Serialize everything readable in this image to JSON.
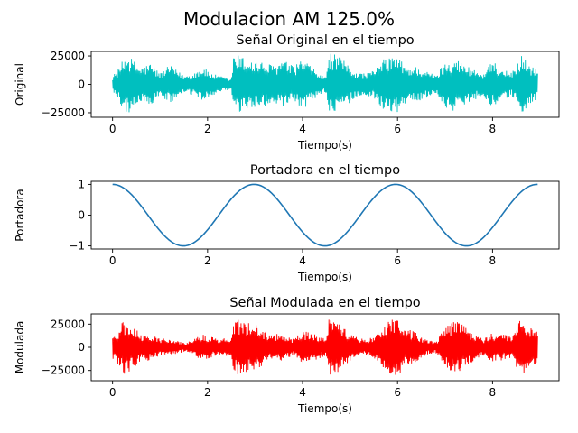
{
  "figure": {
    "suptitle": "Modulacion AM 125.0%"
  },
  "chart_data": [
    {
      "type": "line",
      "title": "Señal Original en el tiempo",
      "xlabel": "Tiempo(s)",
      "ylabel": "Original",
      "color": "#00bfbf",
      "xlim": [
        -0.45,
        9.4
      ],
      "ylim": [
        -29000,
        29000
      ],
      "xticks": [
        0,
        2,
        4,
        6,
        8
      ],
      "xtick_labels": [
        "0",
        "2",
        "4",
        "6",
        "8"
      ],
      "yticks": [
        -25000,
        0,
        25000
      ],
      "ytick_labels": [
        "−25000",
        "0",
        "25000"
      ],
      "signal": "audio waveform, 0 to 8.95 s",
      "envelope": {
        "t": [
          0.0,
          0.1,
          0.2,
          0.3,
          0.45,
          0.6,
          0.8,
          1.0,
          1.2,
          1.5,
          1.7,
          1.9,
          2.0,
          2.2,
          2.4,
          2.5,
          2.55,
          2.65,
          2.8,
          3.0,
          3.2,
          3.4,
          3.6,
          3.8,
          4.0,
          4.2,
          4.4,
          4.5,
          4.55,
          4.7,
          4.9,
          5.1,
          5.3,
          5.5,
          5.7,
          5.9,
          6.0,
          6.2,
          6.4,
          6.6,
          6.8,
          7.0,
          7.2,
          7.4,
          7.6,
          7.8,
          8.0,
          8.2,
          8.4,
          8.6,
          8.8,
          8.95
        ],
        "amp": [
          8000,
          12000,
          20000,
          27000,
          21000,
          15000,
          19000,
          10000,
          17000,
          8000,
          10000,
          16000,
          12000,
          8000,
          6000,
          5000,
          27000,
          26000,
          23000,
          21000,
          19000,
          17000,
          22000,
          16000,
          23000,
          15000,
          8000,
          7000,
          28000,
          26000,
          20000,
          12000,
          10000,
          12000,
          22000,
          26000,
          25000,
          15000,
          16000,
          12000,
          8000,
          20000,
          24000,
          18000,
          14000,
          10000,
          20000,
          15000,
          10000,
          26000,
          17000,
          13000
        ]
      }
    },
    {
      "type": "line",
      "title": "Portadora en el tiempo",
      "xlabel": "Tiempo(s)",
      "ylabel": "Portadora",
      "color": "#1f77b4",
      "xlim": [
        -0.45,
        9.4
      ],
      "ylim": [
        -1.1,
        1.1
      ],
      "xticks": [
        0,
        2,
        4,
        6,
        8
      ],
      "xtick_labels": [
        "0",
        "2",
        "4",
        "6",
        "8"
      ],
      "yticks": [
        -1,
        0,
        1
      ],
      "ytick_labels": [
        "−1",
        "0",
        "1"
      ],
      "signal": "cosine",
      "cosine": {
        "amplitude": 1,
        "period_s": 2.98,
        "t_start": 0,
        "t_end": 8.95
      }
    },
    {
      "type": "line",
      "title": "Señal Modulada en el tiempo",
      "xlabel": "Tiempo(s)",
      "ylabel": "Modulada",
      "color": "#ff0000",
      "xlim": [
        -0.45,
        9.4
      ],
      "ylim": [
        -36000,
        36000
      ],
      "xticks": [
        0,
        2,
        4,
        6,
        8
      ],
      "xtick_labels": [
        "0",
        "2",
        "4",
        "6",
        "8"
      ],
      "yticks": [
        -25000,
        0,
        25000
      ],
      "ytick_labels": [
        "−25000",
        "0",
        "25000"
      ],
      "signal": "AM modulated waveform, 0 to 8.95 s",
      "envelope": {
        "t": [
          0.0,
          0.1,
          0.2,
          0.3,
          0.45,
          0.6,
          0.8,
          1.0,
          1.2,
          1.5,
          1.7,
          1.9,
          2.0,
          2.2,
          2.4,
          2.5,
          2.55,
          2.65,
          2.8,
          3.0,
          3.2,
          3.4,
          3.6,
          3.8,
          4.0,
          4.2,
          4.4,
          4.5,
          4.55,
          4.7,
          4.9,
          5.1,
          5.3,
          5.5,
          5.7,
          5.9,
          6.0,
          6.2,
          6.4,
          6.6,
          6.8,
          7.0,
          7.2,
          7.4,
          7.6,
          7.8,
          8.0,
          8.2,
          8.4,
          8.6,
          8.8,
          8.95
        ],
        "amp": [
          12000,
          18000,
          27000,
          30000,
          22000,
          14000,
          15000,
          9000,
          10000,
          5000,
          8000,
          15000,
          13000,
          9000,
          10000,
          8000,
          29000,
          30000,
          27000,
          25000,
          18000,
          14000,
          15000,
          9000,
          18000,
          15000,
          11000,
          12000,
          33000,
          30000,
          20000,
          12000,
          9000,
          11000,
          25000,
          31000,
          33000,
          20000,
          16000,
          8000,
          6000,
          22000,
          30000,
          24000,
          15000,
          9000,
          16000,
          14000,
          12000,
          32000,
          22000,
          18000
        ]
      }
    }
  ]
}
